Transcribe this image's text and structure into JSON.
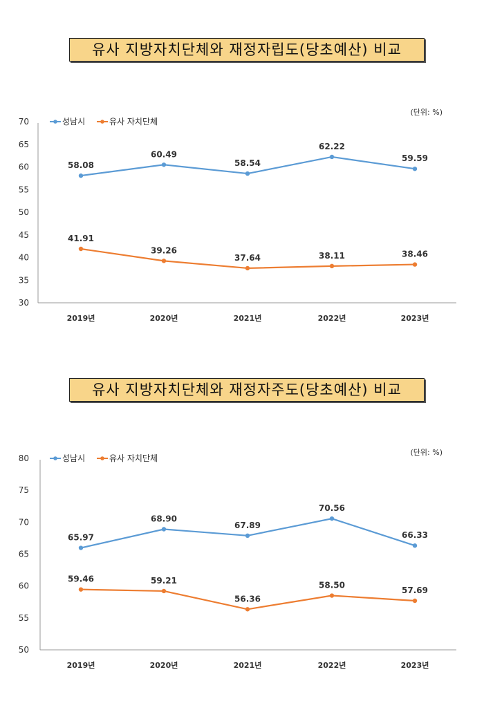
{
  "colors": {
    "series1": "#5b9bd5",
    "series2": "#ed7d31",
    "title_box": "#f8d58a"
  },
  "chart_data": [
    {
      "type": "line",
      "title": "유사 지방자치단체와 재정자립도(당초예산) 비교",
      "unit_note": "(단위: %)",
      "categories": [
        "2019년",
        "2020년",
        "2021년",
        "2022년",
        "2023년"
      ],
      "ylim": [
        30,
        70
      ],
      "yticks": [
        30,
        35,
        40,
        45,
        50,
        55,
        60,
        65,
        70
      ],
      "grid": false,
      "legend": "top-left",
      "series": [
        {
          "name": "성남시",
          "values": [
            58.08,
            60.49,
            58.54,
            62.22,
            59.59
          ],
          "labels": [
            "58.08",
            "60.49",
            "58.54",
            "62.22",
            "59.59"
          ]
        },
        {
          "name": "유사 자치단체",
          "values": [
            41.91,
            39.26,
            37.64,
            38.11,
            38.46
          ],
          "labels": [
            "41.91",
            "39.26",
            "37.64",
            "38.11",
            "38.46"
          ]
        }
      ]
    },
    {
      "type": "line",
      "title": "유사 지방자치단체와 재정자주도(당초예산) 비교",
      "unit_note": "(단위: %)",
      "categories": [
        "2019년",
        "2020년",
        "2021년",
        "2022년",
        "2023년"
      ],
      "ylim": [
        50,
        80
      ],
      "yticks": [
        50,
        55,
        60,
        65,
        70,
        75,
        80
      ],
      "grid": false,
      "legend": "top-left",
      "series": [
        {
          "name": "성남시",
          "values": [
            65.97,
            68.9,
            67.89,
            70.56,
            66.33
          ],
          "labels": [
            "65.97",
            "68.90",
            "67.89",
            "70.56",
            "66.33"
          ]
        },
        {
          "name": "유사 자치단체",
          "values": [
            59.46,
            59.21,
            56.36,
            58.5,
            57.69
          ],
          "labels": [
            "59.46",
            "59.21",
            "56.36",
            "58.50",
            "57.69"
          ]
        }
      ]
    }
  ]
}
